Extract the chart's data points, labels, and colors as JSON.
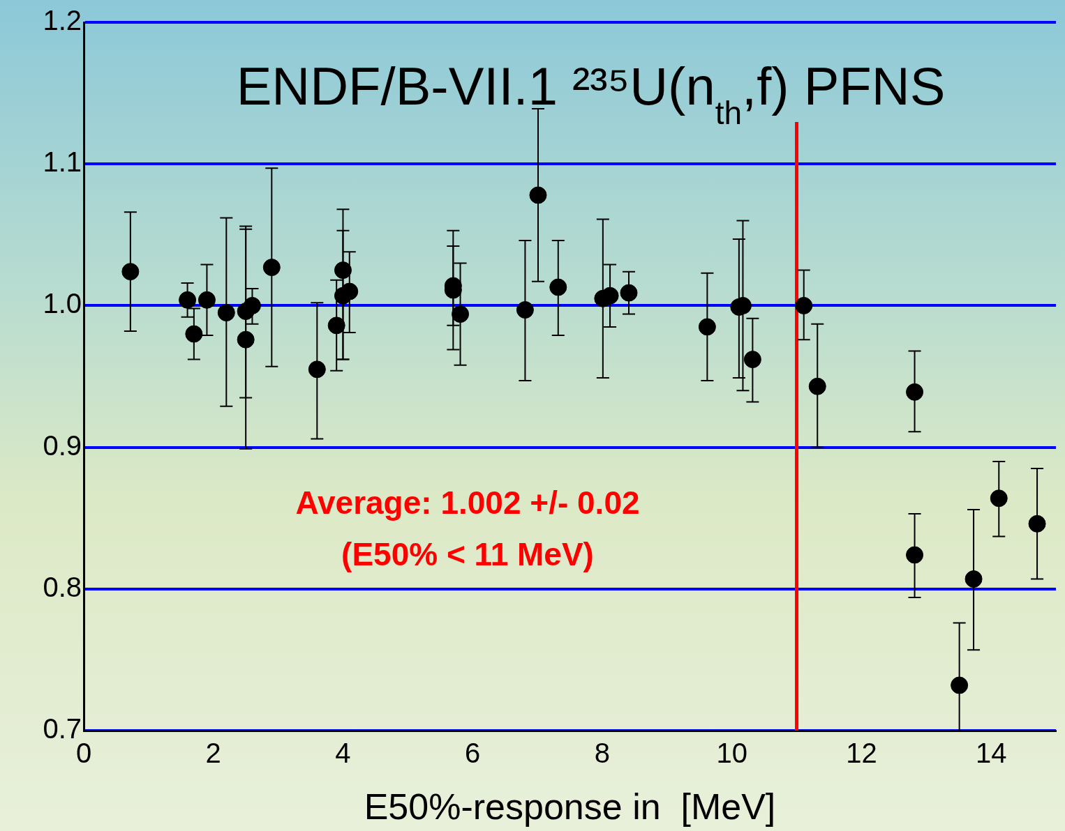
{
  "chart_data": {
    "type": "scatter",
    "title": "ENDF/B-VII.1 ²³⁵U(n$_{th}$,f) PFNS",
    "xlabel": "E50%-response in  [MeV]",
    "annotations": [
      "Average: 1.002 +/- 0.02",
      "(E50% < 11 MeV)"
    ],
    "series": [
      {
        "color": "#000000",
        "x": [
          0.72,
          1.6,
          1.7,
          1.9,
          2.2,
          2.5,
          2.5,
          2.6,
          2.9,
          3.6,
          3.9,
          4.0,
          4.0,
          4.1,
          5.7,
          5.7,
          5.81,
          6.81,
          7.01,
          7.32,
          8.01,
          8.12,
          8.41,
          9.62,
          10.11,
          10.17,
          10.32,
          11.11,
          11.32,
          12.82,
          12.82,
          13.51,
          13.73,
          14.12,
          14.71
        ],
        "values": [
          1.024,
          1.004,
          0.98,
          1.004,
          0.995,
          0.996,
          0.976,
          1.0,
          1.027,
          0.955,
          0.986,
          1.025,
          1.007,
          1.01,
          1.014,
          1.011,
          0.994,
          0.997,
          1.078,
          1.013,
          1.005,
          1.007,
          1.009,
          0.985,
          0.999,
          1.0,
          0.962,
          1.0,
          0.943,
          0.939,
          0.824,
          0.732,
          0.807,
          0.864,
          0.846
        ],
        "errors": [
          [
            0.982,
            1.066
          ],
          [
            0.992,
            1.016
          ],
          [
            0.962,
            0.998
          ],
          [
            0.979,
            1.029
          ],
          [
            0.929,
            1.062
          ],
          [
            0.899,
            1.056
          ],
          [
            0.935,
            1.054
          ],
          [
            0.987,
            1.012
          ],
          [
            0.957,
            1.097
          ],
          [
            0.906,
            1.002
          ],
          [
            0.954,
            1.018
          ],
          [
            0.962,
            1.068
          ],
          [
            0.962,
            1.053
          ],
          [
            0.981,
            1.038
          ],
          [
            0.969,
            1.053
          ],
          [
            0.986,
            1.042
          ],
          [
            0.958,
            1.03
          ],
          [
            0.947,
            1.046
          ],
          [
            1.017,
            1.139
          ],
          [
            0.979,
            1.046
          ],
          [
            0.949,
            1.061
          ],
          [
            0.985,
            1.029
          ],
          [
            0.994,
            1.024
          ],
          [
            0.947,
            1.023
          ],
          [
            0.949,
            1.047
          ],
          [
            0.94,
            1.06
          ],
          [
            0.932,
            0.991
          ],
          [
            0.976,
            1.025
          ],
          [
            0.9,
            0.987
          ],
          [
            0.911,
            0.968
          ],
          [
            0.794,
            0.853
          ],
          [
            0.7,
            0.776
          ],
          [
            0.757,
            0.856
          ],
          [
            0.837,
            0.89
          ],
          [
            0.807,
            0.885
          ]
        ]
      }
    ],
    "xlim": [
      0,
      15
    ],
    "xticks": [
      0,
      2,
      4,
      6,
      8,
      10,
      12,
      14
    ],
    "ylim": [
      0.7,
      1.2
    ],
    "yticks": [
      0.7,
      0.8,
      0.9,
      {
        "value": 1,
        "label": "1.0"
      },
      1.1,
      1.2
    ],
    "ref_lines": [
      {
        "axis": "x",
        "value": 11,
        "color": "#ff0000"
      }
    ],
    "grid": "y",
    "legend": false,
    "marker": "circle"
  }
}
